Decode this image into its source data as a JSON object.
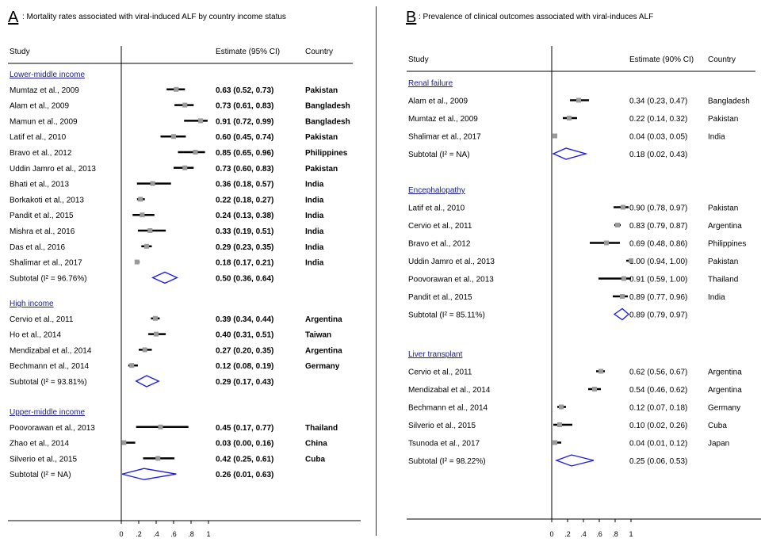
{
  "chart_data": [
    {
      "type": "forest",
      "panel_letter": "A",
      "title": ": Mortality rates associated with viral-induced ALF by country income status",
      "columns": {
        "study": "Study",
        "estimate": "Estimate (95% CI)",
        "country": "Country"
      },
      "xlim": [
        0,
        1
      ],
      "x_ticks": [
        "0",
        ".2",
        ".4",
        ".6",
        ".8",
        "1"
      ],
      "x_tick_values": [
        0,
        0.2,
        0.4,
        0.6,
        0.8,
        1
      ],
      "groups": [
        {
          "name": "Lower-middle income",
          "studies": [
            {
              "study": "Mumtaz et al., 2009",
              "estimate": 0.63,
              "lower": 0.52,
              "upper": 0.73,
              "label": "0.63 (0.52, 0.73)",
              "country": "Pakistan"
            },
            {
              "study": "Alam et al., 2009",
              "estimate": 0.73,
              "lower": 0.61,
              "upper": 0.83,
              "label": "0.73 (0.61, 0.83)",
              "country": "Bangladesh"
            },
            {
              "study": "Mamun et al., 2009",
              "estimate": 0.91,
              "lower": 0.72,
              "upper": 0.99,
              "label": "0.91 (0.72, 0.99)",
              "country": "Bangladesh"
            },
            {
              "study": "Latif et al., 2010",
              "estimate": 0.6,
              "lower": 0.45,
              "upper": 0.74,
              "label": "0.60 (0.45, 0.74)",
              "country": "Pakistan"
            },
            {
              "study": "Bravo et al., 2012",
              "estimate": 0.85,
              "lower": 0.65,
              "upper": 0.96,
              "label": "0.85 (0.65, 0.96)",
              "country": "Philippines"
            },
            {
              "study": "Uddin Jamro et al., 2013",
              "estimate": 0.73,
              "lower": 0.6,
              "upper": 0.83,
              "label": "0.73 (0.60, 0.83)",
              "country": "Pakistan"
            },
            {
              "study": "Bhati et al., 2013",
              "estimate": 0.36,
              "lower": 0.18,
              "upper": 0.57,
              "label": "0.36 (0.18, 0.57)",
              "country": "India"
            },
            {
              "study": "Borkakoti et al., 2013",
              "estimate": 0.22,
              "lower": 0.18,
              "upper": 0.27,
              "label": "0.22 (0.18, 0.27)",
              "country": "India"
            },
            {
              "study": "Pandit et al., 2015",
              "estimate": 0.24,
              "lower": 0.13,
              "upper": 0.38,
              "label": "0.24 (0.13, 0.38)",
              "country": "India"
            },
            {
              "study": "Mishra et al., 2016",
              "estimate": 0.33,
              "lower": 0.19,
              "upper": 0.51,
              "label": "0.33 (0.19, 0.51)",
              "country": "India"
            },
            {
              "study": "Das et al., 2016",
              "estimate": 0.29,
              "lower": 0.23,
              "upper": 0.35,
              "label": "0.29 (0.23, 0.35)",
              "country": "India"
            },
            {
              "study": "Shalimar et al., 2017",
              "estimate": 0.18,
              "lower": 0.17,
              "upper": 0.21,
              "label": "0.18 (0.17, 0.21)",
              "country": "India"
            }
          ],
          "subtotal": {
            "label": "Subtotal  (I² = 96.76%)",
            "estimate": 0.5,
            "lower": 0.36,
            "upper": 0.64,
            "value_label": "0.50 (0.36, 0.64)"
          }
        },
        {
          "name": "High income",
          "studies": [
            {
              "study": "Cervio et al., 2011",
              "estimate": 0.39,
              "lower": 0.34,
              "upper": 0.44,
              "label": "0.39 (0.34, 0.44)",
              "country": "Argentina"
            },
            {
              "study": "Ho et al., 2014",
              "estimate": 0.4,
              "lower": 0.31,
              "upper": 0.51,
              "label": "0.40 (0.31, 0.51)",
              "country": "Taiwan"
            },
            {
              "study": "Mendizabal et al., 2014",
              "estimate": 0.27,
              "lower": 0.2,
              "upper": 0.35,
              "label": "0.27 (0.20, 0.35)",
              "country": "Argentina"
            },
            {
              "study": "Bechmann et al., 2014",
              "estimate": 0.12,
              "lower": 0.08,
              "upper": 0.19,
              "label": "0.12 (0.08, 0.19)",
              "country": "Germany"
            }
          ],
          "subtotal": {
            "label": "Subtotal  (I² = 93.81%)",
            "estimate": 0.29,
            "lower": 0.17,
            "upper": 0.43,
            "value_label": "0.29 (0.17, 0.43)"
          }
        },
        {
          "name": "Upper-middle income",
          "studies": [
            {
              "study": "Poovorawan et al., 2013",
              "estimate": 0.45,
              "lower": 0.17,
              "upper": 0.77,
              "label": "0.45 (0.17, 0.77)",
              "country": "Thailand"
            },
            {
              "study": "Zhao et al., 2014",
              "estimate": 0.03,
              "lower": 0.0,
              "upper": 0.16,
              "label": "0.03 (0.00, 0.16)",
              "country": "China"
            },
            {
              "study": "Silverio et al., 2015",
              "estimate": 0.42,
              "lower": 0.25,
              "upper": 0.61,
              "label": "0.42 (0.25, 0.61)",
              "country": "Cuba"
            }
          ],
          "subtotal": {
            "label": "Subtotal  (I² = NA)",
            "estimate": 0.26,
            "lower": 0.01,
            "upper": 0.63,
            "value_label": "0.26 (0.01, 0.63)"
          }
        }
      ]
    },
    {
      "type": "forest",
      "panel_letter": "B",
      "title": ": Prevalence of clinical outcomes associated with viral-induces ALF",
      "columns": {
        "study": "Study",
        "estimate": "Estimate (90% CI)",
        "country": "Country"
      },
      "xlim": [
        0,
        1
      ],
      "x_ticks": [
        "0",
        ".2",
        ".4",
        ".6",
        ".8",
        "1"
      ],
      "x_tick_values": [
        0,
        0.2,
        0.4,
        0.6,
        0.8,
        1
      ],
      "groups": [
        {
          "name": "Renal failure",
          "studies": [
            {
              "study": "Alam et al., 2009",
              "estimate": 0.34,
              "lower": 0.23,
              "upper": 0.47,
              "label": "0.34 (0.23, 0.47)",
              "country": "Bangladesh"
            },
            {
              "study": "Mumtaz et al., 2009",
              "estimate": 0.22,
              "lower": 0.14,
              "upper": 0.32,
              "label": "0.22 (0.14, 0.32)",
              "country": "Pakistan"
            },
            {
              "study": "Shalimar et al., 2017",
              "estimate": 0.04,
              "lower": 0.03,
              "upper": 0.05,
              "label": "0.04 (0.03, 0.05)",
              "country": "India"
            }
          ],
          "subtotal": {
            "label": "Subtotal  (I² = NA)",
            "estimate": 0.18,
            "lower": 0.02,
            "upper": 0.43,
            "value_label": "0.18 (0.02, 0.43)"
          }
        },
        {
          "name": "Encephalopathy",
          "studies": [
            {
              "study": "Latif et al., 2010",
              "estimate": 0.9,
              "lower": 0.78,
              "upper": 0.97,
              "label": "0.90 (0.78, 0.97)",
              "country": "Pakistan"
            },
            {
              "study": "Cervio et al., 2011",
              "estimate": 0.83,
              "lower": 0.79,
              "upper": 0.87,
              "label": "0.83 (0.79, 0.87)",
              "country": "Argentina"
            },
            {
              "study": "Bravo et al., 2012",
              "estimate": 0.69,
              "lower": 0.48,
              "upper": 0.86,
              "label": "0.69 (0.48, 0.86)",
              "country": "Philippines"
            },
            {
              "study": "Uddin Jamro et al., 2013",
              "estimate": 1.0,
              "lower": 0.94,
              "upper": 1.0,
              "label": "1.00 (0.94, 1.00)",
              "country": "Pakistan"
            },
            {
              "study": "Poovorawan et al., 2013",
              "estimate": 0.91,
              "lower": 0.59,
              "upper": 1.0,
              "label": "0.91 (0.59, 1.00)",
              "country": "Thailand"
            },
            {
              "study": "Pandit et al., 2015",
              "estimate": 0.89,
              "lower": 0.77,
              "upper": 0.96,
              "label": "0.89 (0.77, 0.96)",
              "country": "India"
            }
          ],
          "subtotal": {
            "label": "Subtotal  (I² = 85.11%)",
            "estimate": 0.89,
            "lower": 0.79,
            "upper": 0.97,
            "value_label": "0.89 (0.79, 0.97)"
          }
        },
        {
          "name": "Liver transplant",
          "studies": [
            {
              "study": "Cervio et al., 2011",
              "estimate": 0.62,
              "lower": 0.56,
              "upper": 0.67,
              "label": "0.62 (0.56, 0.67)",
              "country": "Argentina"
            },
            {
              "study": "Mendizabal et al., 2014",
              "estimate": 0.54,
              "lower": 0.46,
              "upper": 0.62,
              "label": "0.54 (0.46, 0.62)",
              "country": "Argentina"
            },
            {
              "study": "Bechmann et al., 2014",
              "estimate": 0.12,
              "lower": 0.07,
              "upper": 0.18,
              "label": "0.12 (0.07, 0.18)",
              "country": "Germany"
            },
            {
              "study": "Silverio et al., 2015",
              "estimate": 0.1,
              "lower": 0.02,
              "upper": 0.26,
              "label": "0.10 (0.02, 0.26)",
              "country": "Cuba"
            },
            {
              "study": "Tsunoda et al., 2017",
              "estimate": 0.04,
              "lower": 0.01,
              "upper": 0.12,
              "label": "0.04 (0.01, 0.12)",
              "country": "Japan"
            }
          ],
          "subtotal": {
            "label": "Subtotal  (I² = 98.22%)",
            "estimate": 0.25,
            "lower": 0.06,
            "upper": 0.53,
            "value_label": "0.25 (0.06, 0.53)"
          }
        }
      ]
    }
  ],
  "colors": {
    "diamond": "#1a1adf",
    "heading": "#1a1a8c",
    "marker_square": "#9a9a9a",
    "line": "#000000"
  }
}
